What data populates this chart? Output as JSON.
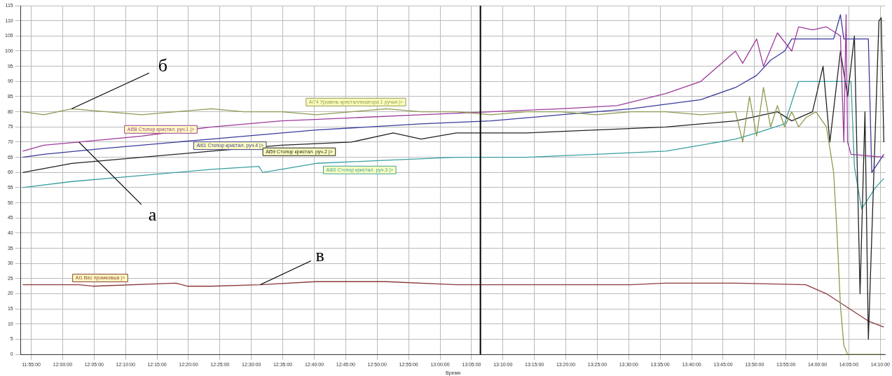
{
  "chart_data": {
    "type": "line",
    "xlabel": "Время",
    "marker": "none",
    "grid": true,
    "legend": false,
    "xlim": [
      11.889,
      14.18
    ],
    "ylim": [
      0,
      115
    ],
    "yticks": [
      0,
      5,
      10,
      15,
      20,
      25,
      30,
      35,
      40,
      45,
      50,
      55,
      60,
      65,
      70,
      75,
      80,
      85,
      90,
      95,
      100,
      105,
      110,
      115
    ],
    "xticks": [
      {
        "value": 11.9167,
        "label": "11:55:00"
      },
      {
        "value": 12,
        "label": "12:00:00"
      },
      {
        "value": 12.0833,
        "label": "12:05:00"
      },
      {
        "value": 12.1667,
        "label": "12:10:00"
      },
      {
        "value": 12.25,
        "label": "12:15:00"
      },
      {
        "value": 12.3333,
        "label": "12:20:00"
      },
      {
        "value": 12.4167,
        "label": "12:25:00"
      },
      {
        "value": 12.5,
        "label": "12:30:00"
      },
      {
        "value": 12.5833,
        "label": "12:35:00"
      },
      {
        "value": 12.6667,
        "label": "12:40:00"
      },
      {
        "value": 12.75,
        "label": "12:45:00"
      },
      {
        "value": 12.8333,
        "label": "12:50:00"
      },
      {
        "value": 12.9167,
        "label": "12:55:00"
      },
      {
        "value": 13,
        "label": "13:00:00"
      },
      {
        "value": 13.0833,
        "label": "13:05:00"
      },
      {
        "value": 13.1667,
        "label": "13:10:00"
      },
      {
        "value": 13.25,
        "label": "13:15:00"
      },
      {
        "value": 13.3333,
        "label": "13:20:00"
      },
      {
        "value": 13.4167,
        "label": "13:25:00"
      },
      {
        "value": 13.5,
        "label": "13:30:00"
      },
      {
        "value": 13.5833,
        "label": "13:35:00"
      },
      {
        "value": 13.6667,
        "label": "13:40:00"
      },
      {
        "value": 13.75,
        "label": "13:45:00"
      },
      {
        "value": 13.8333,
        "label": "13:50:00"
      },
      {
        "value": 13.9167,
        "label": "13:55:00"
      },
      {
        "value": 14,
        "label": "14:00:00"
      },
      {
        "value": 14.0833,
        "label": "14:05:00"
      },
      {
        "value": 14.1667,
        "label": "14:10:00"
      }
    ],
    "ref_lines": [
      {
        "axis": "x",
        "value": 13.107,
        "color": "#000000"
      }
    ],
    "annotations": [
      {
        "text": "б",
        "x": 12.024,
        "y": 81
      },
      {
        "text": "а",
        "x": 12.043,
        "y": 70
      },
      {
        "text": "в",
        "x": 12.524,
        "y": 23
      }
    ],
    "series": [
      {
        "name": "Ai74 Уровень кристаллизатора 1 ручья |>",
        "color": "#8c9a50",
        "x": [
          11.894,
          11.95,
          12.024,
          12.117,
          12.209,
          12.3,
          12.394,
          12.48,
          12.58,
          12.672,
          12.765,
          12.857,
          12.95,
          13.043,
          13.135,
          13.228,
          13.32,
          13.413,
          13.506,
          13.598,
          13.691,
          13.783,
          13.802,
          13.82,
          13.839,
          13.857,
          13.876,
          13.894,
          13.913,
          13.932,
          13.95,
          13.969,
          13.996,
          14.024,
          14.043,
          14.052,
          14.061,
          14.07,
          14.08,
          14.176
        ],
        "values": [
          80,
          79,
          81,
          80,
          79,
          80,
          81,
          80,
          80,
          79,
          80,
          81,
          80,
          80,
          79,
          80,
          80,
          79,
          80,
          80,
          79,
          80,
          70,
          85,
          72,
          88,
          75,
          82,
          75,
          80,
          75,
          78,
          80,
          75,
          60,
          40,
          16,
          3,
          0,
          0
        ]
      },
      {
        "name": "Ai58 Стопор кристал. руч.1 |>",
        "color": "#9c3a9c",
        "x": [
          11.894,
          11.95,
          12.043,
          12.209,
          12.394,
          12.58,
          12.765,
          12.95,
          13.135,
          13.32,
          13.469,
          13.598,
          13.691,
          13.783,
          13.802,
          13.839,
          13.857,
          13.894,
          13.932,
          13.95,
          13.987,
          14.024,
          14.061,
          14.07,
          14.076,
          14.08,
          14.089,
          14.176
        ],
        "values": [
          67,
          69,
          70,
          72,
          75,
          77,
          78,
          79,
          80,
          81,
          82,
          86,
          90,
          100,
          96,
          104,
          95,
          106,
          100,
          108,
          107,
          108,
          105,
          70,
          112,
          70,
          66,
          65
        ]
      },
      {
        "name": "Ai61 Стопор кристал. руч.4 |>",
        "color": "#3a3a9c",
        "x": [
          11.894,
          11.95,
          12.117,
          12.394,
          12.672,
          12.95,
          13.135,
          13.32,
          13.506,
          13.691,
          13.783,
          13.839,
          13.876,
          13.913,
          13.932,
          14.043,
          14.061,
          14.07,
          14.135,
          14.144,
          14.176
        ],
        "values": [
          65,
          66,
          68,
          71,
          74,
          76,
          77,
          79,
          81,
          84,
          88,
          92,
          97,
          100,
          104,
          104,
          112,
          104,
          104,
          60,
          66
        ]
      },
      {
        "name": "Ai59 Стопор кристал. руч.2 |>",
        "color": "#222222",
        "x": [
          11.894,
          12.024,
          12.209,
          12.394,
          12.58,
          12.765,
          12.876,
          12.95,
          13.043,
          13.228,
          13.413,
          13.598,
          13.783,
          13.894,
          13.932,
          13.987,
          14.015,
          14.033,
          14.061,
          14.08,
          14.098,
          14.113,
          14.126,
          14.135,
          14.163,
          14.169,
          14.176
        ],
        "values": [
          60,
          63,
          65,
          67,
          69,
          70,
          73,
          71,
          73,
          73,
          74,
          75,
          77,
          80,
          77,
          80,
          95,
          70,
          100,
          85,
          105,
          20,
          80,
          5,
          110,
          111,
          70
        ]
      },
      {
        "name": "Ai60 Стопор кристал. руч.3 |>",
        "color": "#3a9fa0",
        "x": [
          11.894,
          12.024,
          12.209,
          12.394,
          12.52,
          12.53,
          12.672,
          12.857,
          13.043,
          13.228,
          13.413,
          13.598,
          13.691,
          13.783,
          13.839,
          13.913,
          13.95,
          14.043,
          14.089,
          14.098,
          14.117,
          14.154,
          14.176
        ],
        "values": [
          55,
          57,
          59,
          61,
          62,
          60,
          63,
          64,
          65,
          65,
          66,
          67,
          69,
          71,
          73,
          76,
          90,
          90,
          90,
          62,
          48,
          55,
          58
        ]
      },
      {
        "name": "Ai1 Вес промковша |>",
        "color": "#8b3a3a",
        "x": [
          11.894,
          12.043,
          12.08,
          12.3,
          12.33,
          12.394,
          12.524,
          12.67,
          12.72,
          12.765,
          12.857,
          13.043,
          13.135,
          13.228,
          13.32,
          13.413,
          13.506,
          13.598,
          13.691,
          13.783,
          13.969,
          14.024,
          14.061,
          14.098,
          14.135,
          14.176
        ],
        "values": [
          23,
          23,
          22.5,
          23.5,
          22.5,
          22.5,
          23,
          24,
          24,
          24,
          24,
          23,
          23,
          23,
          23,
          23,
          23,
          23.5,
          23.5,
          23.5,
          23,
          20,
          17,
          14,
          11,
          9
        ]
      }
    ]
  }
}
